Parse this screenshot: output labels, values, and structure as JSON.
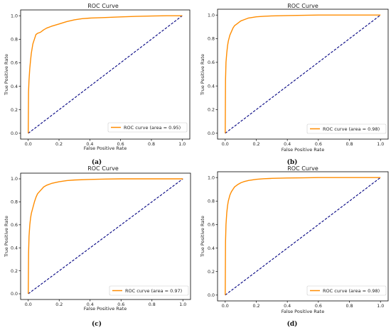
{
  "colors": {
    "roc": "#ff8c00",
    "diagonal": "#000080"
  },
  "chart_data": [
    {
      "type": "line",
      "panel": "(a)",
      "title": "ROC Curve",
      "xlabel": "False Positive Rate",
      "ylabel": "True Positive Rate",
      "xlim": [
        0.0,
        1.0
      ],
      "ylim": [
        0.0,
        1.0
      ],
      "xticks": [
        "0.0",
        "0.2",
        "0.4",
        "0.6",
        "0.8",
        "1.0"
      ],
      "yticks": [
        "0.0",
        "0.2",
        "0.4",
        "0.6",
        "0.8",
        "1.0"
      ],
      "grid": false,
      "legend_position": "bottom-right",
      "series": [
        {
          "name": "ROC curve (area = 0.95)",
          "style": "solid",
          "x": [
            0,
            0.002,
            0.005,
            0.01,
            0.015,
            0.02,
            0.03,
            0.04,
            0.05,
            0.06,
            0.08,
            0.1,
            0.12,
            0.15,
            0.2,
            0.25,
            0.3,
            0.35,
            0.4,
            0.5,
            0.6,
            0.7,
            0.8,
            0.9,
            1.0
          ],
          "y": [
            0,
            0.35,
            0.45,
            0.55,
            0.62,
            0.68,
            0.76,
            0.8,
            0.84,
            0.85,
            0.86,
            0.88,
            0.895,
            0.91,
            0.93,
            0.95,
            0.965,
            0.975,
            0.98,
            0.985,
            0.99,
            0.995,
            0.998,
            1.0,
            1.0
          ]
        },
        {
          "name": "",
          "style": "dashed",
          "x": [
            0,
            1
          ],
          "y": [
            0,
            1
          ]
        }
      ]
    },
    {
      "type": "line",
      "panel": "(b)",
      "title": "ROC Curve",
      "xlabel": "False Positive Rate",
      "ylabel": "True Positive Rate",
      "xlim": [
        0.0,
        1.0
      ],
      "ylim": [
        0.0,
        1.0
      ],
      "xticks": [
        "0.0",
        "0.2",
        "0.4",
        "0.6",
        "0.8",
        "1.0"
      ],
      "yticks": [
        "0.0",
        "0.2",
        "0.4",
        "0.6",
        "0.8",
        "1.0"
      ],
      "grid": false,
      "legend_position": "bottom-right",
      "series": [
        {
          "name": "ROC curve (area = 0.98)",
          "style": "solid",
          "x": [
            0,
            0.002,
            0.005,
            0.01,
            0.015,
            0.02,
            0.03,
            0.04,
            0.05,
            0.06,
            0.08,
            0.1,
            0.12,
            0.15,
            0.2,
            0.25,
            0.3,
            0.4,
            0.5,
            0.6,
            0.8,
            1.0
          ],
          "y": [
            0,
            0.45,
            0.6,
            0.68,
            0.74,
            0.78,
            0.83,
            0.86,
            0.89,
            0.91,
            0.93,
            0.95,
            0.96,
            0.975,
            0.985,
            0.99,
            0.993,
            0.996,
            0.998,
            1.0,
            1.0,
            1.0
          ]
        },
        {
          "name": "",
          "style": "dashed",
          "x": [
            0,
            1
          ],
          "y": [
            0,
            1
          ]
        }
      ]
    },
    {
      "type": "line",
      "panel": "(c)",
      "title": "ROC Curve",
      "xlabel": "False Positive Rate",
      "ylabel": "True Positive Rate",
      "xlim": [
        0.0,
        1.0
      ],
      "ylim": [
        0.0,
        1.0
      ],
      "xticks": [
        "0.0",
        "0.2",
        "0.4",
        "0.6",
        "0.8",
        "1.0"
      ],
      "yticks": [
        "0.0",
        "0.2",
        "0.4",
        "0.6",
        "0.8",
        "1.0"
      ],
      "grid": false,
      "legend_position": "bottom-right",
      "series": [
        {
          "name": "ROC curve (area = 0.97)",
          "style": "solid",
          "x": [
            0,
            0.002,
            0.005,
            0.01,
            0.015,
            0.02,
            0.03,
            0.04,
            0.05,
            0.06,
            0.08,
            0.1,
            0.12,
            0.15,
            0.2,
            0.25,
            0.3,
            0.4,
            0.5,
            0.6,
            0.8,
            1.0
          ],
          "y": [
            0,
            0.35,
            0.5,
            0.6,
            0.66,
            0.7,
            0.75,
            0.8,
            0.84,
            0.87,
            0.9,
            0.93,
            0.945,
            0.96,
            0.975,
            0.985,
            0.99,
            0.995,
            0.998,
            1.0,
            1.0,
            1.0
          ]
        },
        {
          "name": "",
          "style": "dashed",
          "x": [
            0,
            1
          ],
          "y": [
            0,
            1
          ]
        }
      ]
    },
    {
      "type": "line",
      "panel": "(d)",
      "title": "ROC Curve",
      "xlabel": "False Positive Rate",
      "ylabel": "True Positive Rate",
      "xlim": [
        0.0,
        1.0
      ],
      "ylim": [
        0.0,
        1.0
      ],
      "xticks": [
        "0.0",
        "0.2",
        "0.4",
        "0.6",
        "0.8",
        "1.0"
      ],
      "yticks": [
        "0.0",
        "0.2",
        "0.4",
        "0.6",
        "0.8",
        "1.0"
      ],
      "grid": false,
      "legend_position": "bottom-right",
      "series": [
        {
          "name": "ROC curve (area = 0.98)",
          "style": "solid",
          "x": [
            0,
            0.002,
            0.005,
            0.01,
            0.015,
            0.02,
            0.03,
            0.04,
            0.05,
            0.06,
            0.08,
            0.1,
            0.12,
            0.15,
            0.2,
            0.25,
            0.3,
            0.4,
            0.5,
            0.6,
            0.8,
            1.0
          ],
          "y": [
            0,
            0.45,
            0.6,
            0.7,
            0.76,
            0.8,
            0.85,
            0.88,
            0.9,
            0.92,
            0.94,
            0.955,
            0.965,
            0.975,
            0.985,
            0.99,
            0.993,
            0.996,
            0.998,
            1.0,
            1.0,
            1.0
          ]
        },
        {
          "name": "",
          "style": "dashed",
          "x": [
            0,
            1
          ],
          "y": [
            0,
            1
          ]
        }
      ]
    }
  ]
}
